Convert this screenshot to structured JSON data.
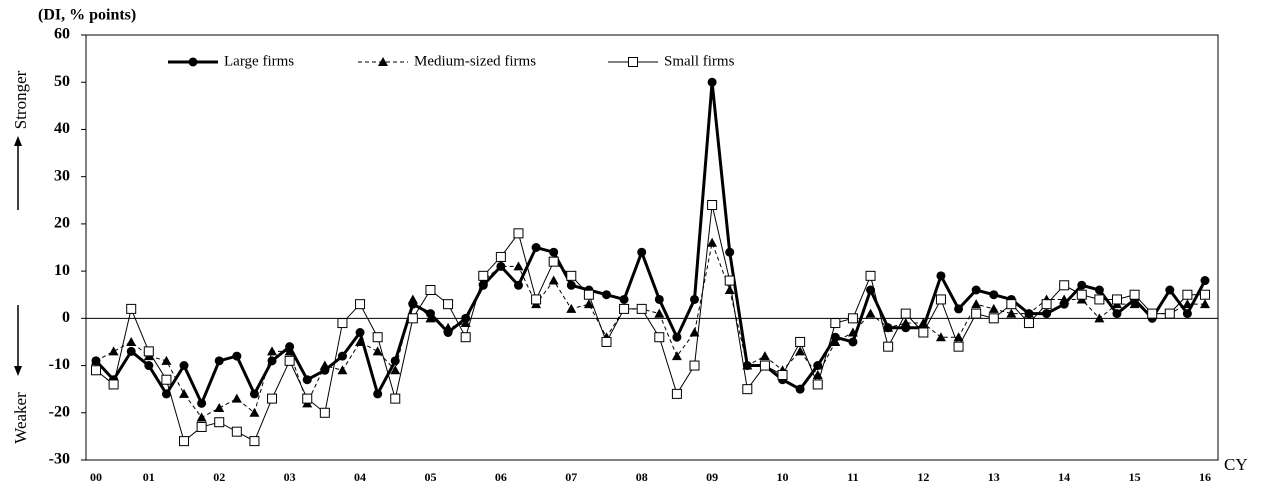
{
  "chart_data": {
    "type": "line",
    "y_label": "(DI, % points)",
    "up_label": "Stronger",
    "down_label": "Weaker",
    "x_label": "CY",
    "categories": [
      "00",
      null,
      null,
      "01",
      null,
      null,
      null,
      "02",
      null,
      null,
      null,
      "03",
      null,
      null,
      null,
      "04",
      null,
      null,
      null,
      "05",
      null,
      null,
      null,
      "06",
      null,
      null,
      null,
      "07",
      null,
      null,
      null,
      "08",
      null,
      null,
      null,
      "09",
      null,
      null,
      null,
      "10",
      null,
      null,
      null,
      "11",
      null,
      null,
      null,
      "12",
      null,
      null,
      null,
      "13",
      null,
      null,
      null,
      "14",
      null,
      null,
      null,
      "15",
      null,
      null,
      null,
      "16"
    ],
    "series": [
      {
        "name": "Large firms",
        "color": "#000000",
        "marker": "circle",
        "line_style": "solid",
        "line_width": 3,
        "values": [
          -9,
          -13,
          -7,
          -10,
          -16,
          -10,
          -18,
          -9,
          -8,
          -16,
          -9,
          -6,
          -13,
          -11,
          -8,
          -3,
          -16,
          -9,
          3,
          1,
          -3,
          0,
          7,
          11,
          7,
          15,
          14,
          7,
          6,
          5,
          4,
          14,
          4,
          -4,
          4,
          50,
          14,
          -10,
          -10,
          -13,
          -15,
          -10,
          -4,
          -5,
          6,
          -2,
          -2,
          -2,
          9,
          2,
          6,
          5,
          4,
          1,
          1,
          3,
          7,
          6,
          1,
          4,
          0,
          6,
          1,
          8
        ]
      },
      {
        "name": "Medium-sized firms",
        "color": "#000000",
        "marker": "triangle",
        "line_style": "dashed",
        "line_width": 1,
        "values": [
          -9,
          -7,
          -5,
          -8,
          -9,
          -16,
          -21,
          -19,
          -17,
          -20,
          -7,
          -7,
          -18,
          -10,
          -11,
          -5,
          -7,
          -11,
          4,
          0,
          -2,
          -1,
          8,
          11,
          11,
          3,
          8,
          2,
          3,
          -4,
          2,
          2,
          1,
          -8,
          -3,
          16,
          6,
          -10,
          -8,
          -11,
          -7,
          -12,
          -5,
          -3,
          1,
          -2,
          -1,
          -1,
          -4,
          -4,
          3,
          2,
          1,
          1,
          4,
          4,
          4,
          0,
          3,
          3,
          1,
          1,
          3,
          3
        ]
      },
      {
        "name": "Small firms",
        "color": "#000000",
        "marker": "square",
        "line_style": "solid",
        "line_width": 1,
        "values": [
          -11,
          -14,
          2,
          -7,
          -13,
          -26,
          -23,
          -22,
          -24,
          -26,
          -17,
          -9,
          -17,
          -20,
          -1,
          3,
          -4,
          -17,
          0,
          6,
          3,
          -4,
          9,
          13,
          18,
          4,
          12,
          9,
          5,
          -5,
          2,
          2,
          -4,
          -16,
          -10,
          24,
          8,
          -15,
          -10,
          -12,
          -5,
          -14,
          -1,
          0,
          9,
          -6,
          1,
          -3,
          4,
          -6,
          1,
          0,
          3,
          -1,
          3,
          7,
          5,
          4,
          4,
          5,
          1,
          1,
          5,
          5
        ]
      }
    ],
    "ylim": [
      -30,
      60
    ],
    "yticks": [
      -30,
      -20,
      -10,
      0,
      10,
      20,
      30,
      40,
      50,
      60
    ],
    "grid": false,
    "legend": "top-left"
  }
}
